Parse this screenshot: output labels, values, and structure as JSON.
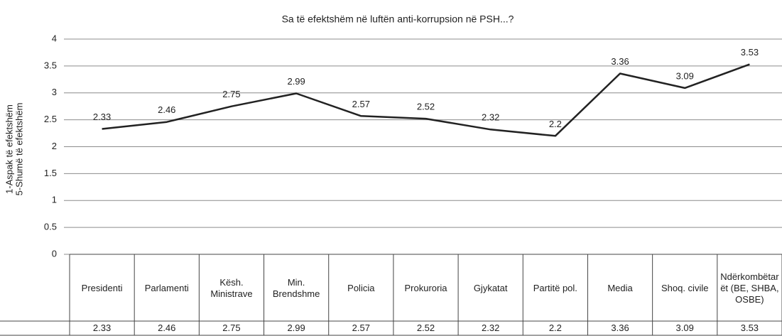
{
  "chart_data": {
    "type": "line",
    "title": "Sa të efektshëm në luftën anti-korrupsion në PSH...?",
    "ylabel": [
      "1-Aspak të efektshëm",
      "5-Shumë të efektshëm"
    ],
    "categories": [
      "Presidenti",
      "Parlamenti",
      "Kësh. Ministrave",
      "Min. Brendshme",
      "Policia",
      "Prokuroria",
      "Gjykatat",
      "Partitë pol.",
      "Media",
      "Shoq. civile",
      "Ndërkombëtarët (BE, SHBA, OSBE)"
    ],
    "values": [
      2.33,
      2.46,
      2.75,
      2.99,
      2.57,
      2.52,
      2.32,
      2.2,
      3.36,
      3.09,
      3.53
    ],
    "color": "#222222",
    "ylim": [
      0,
      4
    ],
    "yticks": [
      0,
      0.5,
      1,
      1.5,
      2,
      2.5,
      3,
      3.5,
      4
    ],
    "grid": true,
    "data_table": true
  }
}
